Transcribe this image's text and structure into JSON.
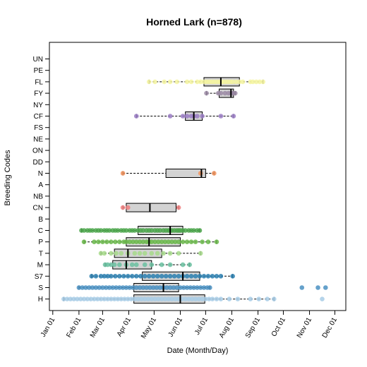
{
  "chart_data": {
    "type": "box",
    "title": "Horned Lark (n=878)",
    "xlabel": "Date (Month/Day)",
    "ylabel": "Breeding Codes",
    "x_ticks": [
      "Jan 01",
      "Feb 01",
      "Mar 01",
      "Apr 01",
      "May 01",
      "Jun 01",
      "Jul 01",
      "Aug 01",
      "Sep 01",
      "Oct 01",
      "Nov 01",
      "Dec 01"
    ],
    "x_tick_days": [
      1,
      32,
      60,
      91,
      121,
      152,
      182,
      213,
      244,
      274,
      305,
      335
    ],
    "xlim": [
      -3,
      348
    ],
    "categories": [
      "UN",
      "PE",
      "FL",
      "FY",
      "NY",
      "CF",
      "FS",
      "NE",
      "ON",
      "DD",
      "N",
      "A",
      "NB",
      "CN",
      "B",
      "C",
      "P",
      "T",
      "M",
      "S7",
      "S",
      "H"
    ],
    "grid": false,
    "series": [
      {
        "code": "FL",
        "color": "#f5f5a0",
        "box": {
          "whisker_lo": 115,
          "q1": 180,
          "median": 200,
          "q3": 222,
          "whisker_hi": 250
        },
        "points": [
          115,
          122,
          133,
          140,
          148,
          160,
          165,
          172,
          176,
          180,
          183,
          186,
          189,
          192,
          195,
          198,
          200,
          202,
          205,
          208,
          211,
          214,
          218,
          222,
          226,
          235,
          238,
          242,
          246,
          250
        ]
      },
      {
        "code": "FY",
        "color": "#9b8aa5",
        "box": {
          "whisker_lo": 183,
          "q1": 198,
          "median": 212,
          "q3": 215,
          "whisker_hi": 217
        },
        "points": [
          183,
          197,
          200,
          205,
          209,
          212,
          214,
          217
        ]
      },
      {
        "code": "CF",
        "color": "#9a7cc4",
        "box": {
          "whisker_lo": 100,
          "q1": 158,
          "median": 168,
          "q3": 178,
          "whisker_hi": 215
        },
        "points": [
          100,
          140,
          155,
          160,
          165,
          168,
          172,
          178,
          200,
          215
        ]
      },
      {
        "code": "N",
        "color": "#f0905a",
        "box": {
          "whisker_lo": 84,
          "q1": 135,
          "median": 177,
          "q3": 182,
          "whisker_hi": 192
        },
        "points": [
          84,
          176,
          192
        ]
      },
      {
        "code": "CN",
        "color": "#f08080",
        "box": {
          "whisker_lo": 84,
          "q1": 88,
          "median": 116,
          "q3": 147,
          "whisker_hi": 150
        },
        "points": [
          84,
          90,
          150
        ]
      },
      {
        "code": "C",
        "color": "#4ca64c",
        "box": {
          "whisker_lo": 35,
          "q1": 102,
          "median": 140,
          "q3": 155,
          "whisker_hi": 175
        },
        "points": [
          35,
          38,
          42,
          45,
          48,
          52,
          55,
          58,
          62,
          65,
          68,
          72,
          75,
          78,
          82,
          85,
          88,
          92,
          95,
          98,
          102,
          105,
          108,
          112,
          115,
          118,
          122,
          125,
          128,
          132,
          135,
          138,
          140,
          142,
          145,
          148,
          150,
          152,
          155,
          158,
          162,
          165,
          168,
          172,
          175
        ]
      },
      {
        "code": "P",
        "color": "#6ab84a",
        "box": {
          "whisker_lo": 38,
          "q1": 88,
          "median": 115,
          "q3": 152,
          "whisker_hi": 195
        },
        "points": [
          38,
          50,
          55,
          60,
          65,
          70,
          75,
          80,
          85,
          88,
          92,
          96,
          100,
          104,
          108,
          112,
          115,
          118,
          122,
          126,
          130,
          134,
          138,
          142,
          146,
          150,
          155,
          160,
          165,
          170,
          178,
          185,
          195
        ]
      },
      {
        "code": "T",
        "color": "#a6d98a",
        "box": {
          "whisker_lo": 58,
          "q1": 74,
          "median": 90,
          "q3": 130,
          "whisker_hi": 176
        },
        "points": [
          58,
          62,
          70,
          76,
          82,
          90,
          98,
          104,
          110,
          118,
          125,
          132,
          140,
          150,
          176
        ]
      },
      {
        "code": "M",
        "color": "#6abfa0",
        "box": {
          "whisker_lo": 63,
          "q1": 72,
          "median": 88,
          "q3": 118,
          "whisker_hi": 163
        },
        "points": [
          63,
          66,
          70,
          74,
          80,
          88,
          95,
          100,
          110,
          118,
          130,
          140,
          155,
          163
        ]
      },
      {
        "code": "S7",
        "color": "#2a7fb0",
        "box": {
          "whisker_lo": 47,
          "q1": 107,
          "median": 155,
          "q3": 175,
          "whisker_hi": 214
        },
        "points": [
          47,
          52,
          58,
          62,
          66,
          70,
          75,
          80,
          85,
          90,
          95,
          100,
          105,
          110,
          115,
          120,
          125,
          130,
          135,
          140,
          145,
          150,
          155,
          160,
          165,
          170,
          175,
          180,
          185,
          190,
          195,
          200,
          214
        ]
      },
      {
        "code": "S",
        "color": "#4a90c2",
        "box": {
          "whisker_lo": 32,
          "q1": 97,
          "median": 132,
          "q3": 150,
          "whisker_hi": 187
        },
        "points": [
          32,
          36,
          40,
          44,
          48,
          52,
          56,
          60,
          64,
          68,
          72,
          76,
          80,
          84,
          88,
          92,
          96,
          100,
          104,
          108,
          112,
          116,
          120,
          124,
          128,
          132,
          136,
          140,
          144,
          148,
          152,
          156,
          160,
          164,
          168,
          172,
          176,
          180,
          184,
          187,
          296,
          315,
          324
        ]
      },
      {
        "code": "H",
        "color": "#a8cce6",
        "box": {
          "whisker_lo": 14,
          "q1": 97,
          "median": 152,
          "q3": 181,
          "whisker_hi": 263
        },
        "points": [
          14,
          18,
          22,
          26,
          30,
          34,
          38,
          42,
          46,
          50,
          54,
          58,
          62,
          66,
          70,
          74,
          78,
          82,
          86,
          90,
          94,
          98,
          102,
          106,
          110,
          114,
          118,
          122,
          126,
          130,
          134,
          138,
          142,
          146,
          150,
          154,
          158,
          162,
          166,
          170,
          174,
          178,
          182,
          186,
          190,
          195,
          200,
          210,
          220,
          235,
          245,
          255,
          263,
          320
        ]
      }
    ]
  }
}
